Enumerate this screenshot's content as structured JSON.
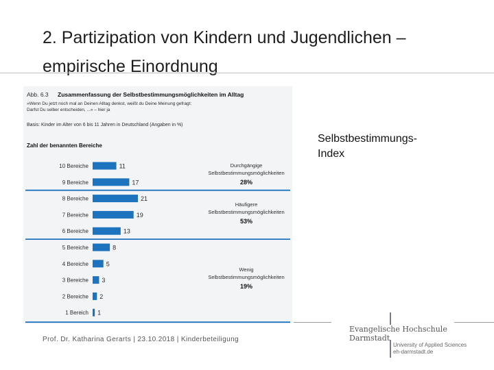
{
  "slide": {
    "title_line1": "2. Partizipation von Kindern und Jugendlichen –",
    "title_line2": "empirische Einordnung",
    "side_label_line1": "Selbstbestimmungs-",
    "side_label_line2": "Index",
    "footer": "Prof. Dr. Katharina Gerarts | 23.10.2018 | Kinderbeteiligung",
    "logo": {
      "name_line1": "Evangelische Hochschule",
      "name_line2": "Darmstadt",
      "sub_line1": "University of Applied Sciences",
      "sub_line2": "eh-darmstadt.de"
    }
  },
  "colors": {
    "bar": "#1e73be",
    "rule": "#1e73be",
    "text": "#2b2b2b"
  },
  "chart_data": {
    "type": "bar",
    "orientation": "horizontal",
    "figure_number": "Abb. 6.3",
    "title": "Zusammenfassung der Selbstbestimmungsmöglichkeiten im Alltag",
    "question": "»Wenn Du jetzt noch mal an Deinen Alltag denkst, weißt du Deine Meinung gefragt: Darfst Du selber entscheiden, ...« – hier ja",
    "basis": "Basis: Kinder im Alter von 6 bis 11 Jahren in Deutschland (Angaben in %)",
    "y_header": "Zahl der benannten Bereiche",
    "categories": [
      "10 Bereiche",
      "9 Bereiche",
      "8 Bereiche",
      "7 Bereiche",
      "6 Bereiche",
      "5 Bereiche",
      "4 Bereiche",
      "3 Bereiche",
      "2 Bereiche",
      "1 Bereich"
    ],
    "values": [
      11,
      17,
      21,
      19,
      13,
      8,
      5,
      3,
      2,
      1
    ],
    "xlim": [
      0,
      21
    ],
    "groups": [
      {
        "label_line1": "Durchgängige",
        "label_line2": "Selbstbestimmungsmöglichkeiten",
        "percent": "28%"
      },
      {
        "label_line1": "Häufigere",
        "label_line2": "Selbstbestimmungsmöglichkeiten",
        "percent": "53%"
      },
      {
        "label_line1": "Wenig",
        "label_line2": "Selbstbestimmungsmöglichkeiten",
        "percent": "19%"
      }
    ]
  }
}
